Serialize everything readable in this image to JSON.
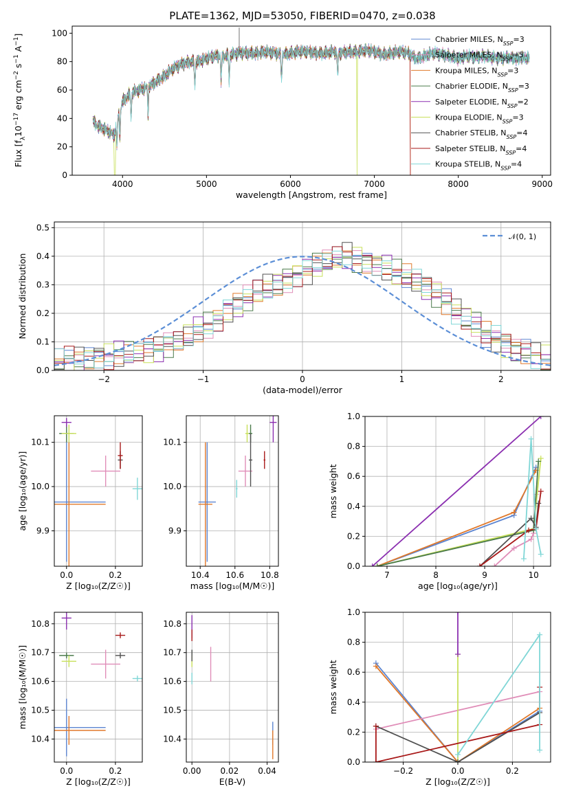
{
  "colors": {
    "chabrier_miles": "#5b84d0",
    "salpeter_miles": "#e08db8",
    "kroupa_miles": "#e0782a",
    "chabrier_elodie": "#4a7a4a",
    "salpeter_elodie": "#8b2fb0",
    "kroupa_elodie": "#c8e05a",
    "chabrier_stelib": "#505050",
    "salpeter_stelib": "#a81818",
    "kroupa_stelib": "#7fd6d6",
    "normal": "#5b8ed6"
  },
  "series_order": [
    "Chabrier MILES",
    "Salpeter MILES",
    "Kroupa MILES",
    "Chabrier ELODIE",
    "Salpeter ELODIE",
    "Kroupa ELODIE",
    "Chabrier STELIB",
    "Salpeter STELIB",
    "Kroupa STELIB"
  ],
  "series_keys": [
    "chabrier_miles",
    "salpeter_miles",
    "kroupa_miles",
    "chabrier_elodie",
    "salpeter_elodie",
    "kroupa_elodie",
    "chabrier_stelib",
    "salpeter_stelib",
    "kroupa_stelib"
  ],
  "chart_data": [
    {
      "id": "spectrum",
      "type": "line",
      "title": "PLATE=1362, MJD=53050, FIBERID=0470, z=0.038",
      "xlabel": "wavelength [Angstrom, rest frame]",
      "xlim": [
        3400,
        9100
      ],
      "ylim": [
        0,
        105
      ],
      "xticks": [
        "4000",
        "5000",
        "6000",
        "7000",
        "8000",
        "9000"
      ],
      "yticks": [
        "0",
        "20",
        "40",
        "60",
        "80",
        "100"
      ],
      "continuum": {
        "x": [
          3650,
          3700,
          3800,
          3900,
          3950,
          4000,
          4100,
          4200,
          4300,
          4400,
          4500,
          4600,
          4700,
          4800,
          4900,
          5000,
          5100,
          5200,
          5300,
          5400,
          5500,
          5600,
          5700,
          5800,
          5900,
          6000,
          6100,
          6200,
          6300,
          6400,
          6500,
          6600,
          6700,
          6800,
          6900,
          7000,
          7100,
          7200,
          7300,
          7400,
          7500,
          7600,
          7700,
          7800,
          7900,
          8000,
          8100,
          8200,
          8300,
          8400,
          8500,
          8600,
          8700,
          8800,
          8850
        ],
        "y": [
          38,
          35,
          32,
          28,
          42,
          52,
          58,
          60,
          62,
          66,
          70,
          75,
          78,
          80,
          80,
          82,
          84,
          84,
          85,
          86,
          86,
          86,
          87,
          86,
          85,
          86,
          87,
          87,
          86,
          86,
          87,
          86,
          87,
          87,
          88,
          87,
          85,
          86,
          87,
          86,
          82,
          84,
          86,
          85,
          84,
          82,
          84,
          83,
          84,
          83,
          82,
          83,
          82,
          83,
          82
        ]
      },
      "legend": [
        {
          "label": "Chabrier MILES",
          "n": "3"
        },
        {
          "label": "Salpeter MILES",
          "n": "5"
        },
        {
          "label": "Kroupa MILES",
          "n": "3"
        },
        {
          "label": "Chabrier ELODIE",
          "n": "3"
        },
        {
          "label": "Salpeter ELODIE",
          "n": "2"
        },
        {
          "label": "Kroupa ELODIE",
          "n": "3"
        },
        {
          "label": "Chabrier STELIB",
          "n": "4"
        },
        {
          "label": "Salpeter STELIB",
          "n": "4"
        },
        {
          "label": "Kroupa STELIB",
          "n": "4"
        }
      ]
    },
    {
      "id": "residuals",
      "type": "histogram",
      "xlabel": "(data-model)/error",
      "ylabel": "Normed distribution",
      "xlim": [
        -2.5,
        2.5
      ],
      "ylim": [
        0,
        0.52
      ],
      "xticks": [
        "−2",
        "−1",
        "0",
        "1",
        "2"
      ],
      "yticks": [
        "0.0",
        "0.1",
        "0.2",
        "0.3",
        "0.4",
        "0.5"
      ],
      "bin_edges_start": -2.5,
      "bin_width": 0.1,
      "hist_values": [
        0.03,
        0.035,
        0.04,
        0.045,
        0.05,
        0.05,
        0.055,
        0.06,
        0.06,
        0.07,
        0.08,
        0.09,
        0.1,
        0.12,
        0.14,
        0.16,
        0.18,
        0.21,
        0.23,
        0.25,
        0.27,
        0.29,
        0.3,
        0.32,
        0.34,
        0.35,
        0.37,
        0.38,
        0.39,
        0.4,
        0.39,
        0.38,
        0.37,
        0.36,
        0.34,
        0.33,
        0.31,
        0.29,
        0.27,
        0.24,
        0.21,
        0.18,
        0.16,
        0.13,
        0.11,
        0.09,
        0.07,
        0.06,
        0.05,
        0.04
      ],
      "normal_label": "𝒩(0, 1)"
    },
    {
      "id": "age_vs_z",
      "type": "errorbar",
      "xlabel": "Z [log₁₀(Z/Z☉)]",
      "ylabel": "age  [log₁₀(age/yr)]",
      "xlim": [
        -0.05,
        0.31
      ],
      "ylim": [
        9.82,
        10.16
      ],
      "xticks": [
        "0.0",
        "0.2"
      ],
      "yticks": [
        "9.9",
        "10.0",
        "10.1"
      ],
      "points": [
        {
          "s": "chabrier_miles",
          "x": 0.0,
          "y": 9.965,
          "xerr": 0.16,
          "yerr": 0.135
        },
        {
          "s": "salpeter_miles",
          "x": 0.16,
          "y": 10.035,
          "xerr": 0.06,
          "yerr": 0.035
        },
        {
          "s": "kroupa_miles",
          "x": 0.01,
          "y": 9.96,
          "xerr": 0.15,
          "yerr": 0.14
        },
        {
          "s": "chabrier_elodie",
          "x": 0.0,
          "y": 10.12,
          "xerr": 0.03,
          "yerr": 0.02
        },
        {
          "s": "salpeter_elodie",
          "x": 0.0,
          "y": 10.145,
          "xerr": 0.02,
          "yerr": 0.01
        },
        {
          "s": "kroupa_elodie",
          "x": 0.01,
          "y": 10.12,
          "xerr": 0.03,
          "yerr": 0.02
        },
        {
          "s": "chabrier_stelib",
          "x": 0.22,
          "y": 10.06,
          "xerr": 0.01,
          "yerr": 0.02
        },
        {
          "s": "salpeter_stelib",
          "x": 0.22,
          "y": 10.07,
          "xerr": 0.01,
          "yerr": 0.03
        },
        {
          "s": "kroupa_stelib",
          "x": 0.29,
          "y": 9.995,
          "xerr": 0.02,
          "yerr": 0.025
        }
      ]
    },
    {
      "id": "age_vs_mass",
      "type": "errorbar",
      "xlabel": "mass [log₁₀(M/M☉)]",
      "ylabel": "",
      "xlim": [
        10.32,
        10.85
      ],
      "ylim": [
        9.82,
        10.16
      ],
      "xticks": [
        "10.4",
        "10.6",
        "10.8"
      ],
      "yticks": [
        "9.9",
        "10.0",
        "10.1"
      ],
      "points": [
        {
          "s": "chabrier_miles",
          "x": 10.44,
          "y": 9.965,
          "xerr": 0.05,
          "yerr": 0.135
        },
        {
          "s": "salpeter_miles",
          "x": 10.66,
          "y": 10.035,
          "xerr": 0.04,
          "yerr": 0.035
        },
        {
          "s": "kroupa_miles",
          "x": 10.43,
          "y": 9.96,
          "xerr": 0.04,
          "yerr": 0.14
        },
        {
          "s": "chabrier_elodie",
          "x": 10.69,
          "y": 10.12,
          "xerr": 0.01,
          "yerr": 0.02
        },
        {
          "s": "salpeter_elodie",
          "x": 10.82,
          "y": 10.145,
          "xerr": 0.02,
          "yerr": 0.045
        },
        {
          "s": "kroupa_elodie",
          "x": 10.67,
          "y": 10.12,
          "xerr": 0.01,
          "yerr": 0.02
        },
        {
          "s": "chabrier_stelib",
          "x": 10.69,
          "y": 10.06,
          "xerr": 0.01,
          "yerr": 0.06
        },
        {
          "s": "salpeter_stelib",
          "x": 10.77,
          "y": 10.06,
          "xerr": 0.005,
          "yerr": 0.02
        },
        {
          "s": "kroupa_stelib",
          "x": 10.61,
          "y": 9.995,
          "xerr": 0.005,
          "yerr": 0.02
        }
      ]
    },
    {
      "id": "weight_vs_age",
      "type": "line",
      "xlabel": "age  [log₁₀(age/yr)]",
      "ylabel": "mass weight",
      "xlim": [
        6.55,
        10.35
      ],
      "ylim": [
        0,
        1.0
      ],
      "xticks": [
        "7",
        "8",
        "9",
        "10"
      ],
      "yticks": [
        "0.0",
        "0.2",
        "0.4",
        "0.6",
        "0.8",
        "1.0"
      ],
      "lines": [
        {
          "s": "chabrier_miles",
          "x": [
            6.8,
            9.6,
            10.05
          ],
          "y": [
            0.0,
            0.34,
            0.66
          ]
        },
        {
          "s": "kroupa_miles",
          "x": [
            6.8,
            9.6,
            10.05
          ],
          "y": [
            0.0,
            0.36,
            0.64
          ]
        },
        {
          "s": "salpeter_miles",
          "x": [
            9.2,
            9.6,
            9.95,
            10.0,
            10.05
          ],
          "y": [
            0.0,
            0.12,
            0.18,
            0.22,
            0.48
          ]
        },
        {
          "s": "kroupa_elodie",
          "x": [
            6.8,
            10.0,
            10.15
          ],
          "y": [
            0.0,
            0.25,
            0.72
          ]
        },
        {
          "s": "chabrier_elodie",
          "x": [
            6.8,
            10.0,
            10.1
          ],
          "y": [
            0.0,
            0.24,
            0.7
          ]
        },
        {
          "s": "salpeter_elodie",
          "x": [
            6.7,
            10.15
          ],
          "y": [
            0.0,
            1.0
          ]
        },
        {
          "s": "chabrier_stelib",
          "x": [
            8.9,
            9.95,
            10.05,
            10.1
          ],
          "y": [
            0.0,
            0.32,
            0.26,
            0.42
          ]
        },
        {
          "s": "salpeter_stelib",
          "x": [
            8.9,
            9.9,
            10.05,
            10.15
          ],
          "y": [
            0.0,
            0.24,
            0.25,
            0.5
          ]
        },
        {
          "s": "kroupa_stelib",
          "x": [
            9.8,
            9.95,
            10.05,
            10.15
          ],
          "y": [
            0.05,
            0.85,
            0.25,
            0.08
          ]
        }
      ]
    },
    {
      "id": "mass_vs_z",
      "type": "errorbar",
      "xlabel": "Z [log₁₀(Z/Z☉)]",
      "ylabel": "mass [log₁₀(M/M☉)]",
      "xlim": [
        -0.05,
        0.31
      ],
      "ylim": [
        10.32,
        10.84
      ],
      "xticks": [
        "0.0",
        "0.2"
      ],
      "yticks": [
        "10.4",
        "10.5",
        "10.6",
        "10.7",
        "10.8"
      ],
      "points": [
        {
          "s": "chabrier_miles",
          "x": 0.0,
          "y": 10.44,
          "xerr": 0.16,
          "yerr": 0.1
        },
        {
          "s": "salpeter_miles",
          "x": 0.16,
          "y": 10.66,
          "xerr": 0.06,
          "yerr": 0.05
        },
        {
          "s": "kroupa_miles",
          "x": 0.01,
          "y": 10.43,
          "xerr": 0.15,
          "yerr": 0.05
        },
        {
          "s": "chabrier_elodie",
          "x": 0.0,
          "y": 10.69,
          "xerr": 0.03,
          "yerr": 0.01
        },
        {
          "s": "salpeter_elodie",
          "x": 0.0,
          "y": 10.82,
          "xerr": 0.02,
          "yerr": 0.04
        },
        {
          "s": "kroupa_elodie",
          "x": 0.01,
          "y": 10.67,
          "xerr": 0.03,
          "yerr": 0.02
        },
        {
          "s": "chabrier_stelib",
          "x": 0.22,
          "y": 10.69,
          "xerr": 0.02,
          "yerr": 0.01
        },
        {
          "s": "salpeter_stelib",
          "x": 0.22,
          "y": 10.76,
          "xerr": 0.02,
          "yerr": 0.01
        },
        {
          "s": "kroupa_stelib",
          "x": 0.29,
          "y": 10.61,
          "xerr": 0.02,
          "yerr": 0.01
        }
      ]
    },
    {
      "id": "mass_vs_ebv",
      "type": "errorbar",
      "xlabel": "E(B-V)",
      "ylabel": "",
      "xlim": [
        -0.003,
        0.046
      ],
      "ylim": [
        10.32,
        10.84
      ],
      "xticks": [
        "0.00",
        "0.02",
        "0.04"
      ],
      "yticks": [
        "10.4",
        "10.5",
        "10.6",
        "10.7",
        "10.8"
      ],
      "points": [
        {
          "s": "chabrier_miles",
          "x": 0.043,
          "y": 10.42,
          "xerr": 0.0,
          "yerr": 0.04
        },
        {
          "s": "salpeter_miles",
          "x": 0.01,
          "y": 10.66,
          "xerr": 0.0,
          "yerr": 0.06
        },
        {
          "s": "kroupa_miles",
          "x": 0.043,
          "y": 10.38,
          "xerr": 0.0,
          "yerr": 0.05
        },
        {
          "s": "chabrier_elodie",
          "x": 0.0,
          "y": 10.69,
          "xerr": 0.0,
          "yerr": 0.02
        },
        {
          "s": "salpeter_elodie",
          "x": 0.0,
          "y": 10.79,
          "xerr": 0.0,
          "yerr": 0.04
        },
        {
          "s": "kroupa_elodie",
          "x": 0.0,
          "y": 10.67,
          "xerr": 0.0,
          "yerr": 0.02
        },
        {
          "s": "chabrier_stelib",
          "x": 0.0,
          "y": 10.69,
          "xerr": 0.0,
          "yerr": 0.02
        },
        {
          "s": "salpeter_stelib",
          "x": 0.0,
          "y": 10.76,
          "xerr": 0.0,
          "yerr": 0.02
        },
        {
          "s": "kroupa_stelib",
          "x": 0.0,
          "y": 10.61,
          "xerr": 0.0,
          "yerr": 0.02
        }
      ]
    },
    {
      "id": "weight_vs_z",
      "type": "line",
      "xlabel": "Z [log₁₀(Z/Z☉)]",
      "ylabel": "mass weight",
      "xlim": [
        -0.34,
        0.34
      ],
      "ylim": [
        0,
        1.0
      ],
      "xticks": [
        "−0.2",
        "0.0",
        "0.2"
      ],
      "yticks": [
        "0.0",
        "0.2",
        "0.4",
        "0.6",
        "0.8",
        "1.0"
      ],
      "lines": [
        {
          "s": "chabrier_miles",
          "x": [
            -0.3,
            0.0,
            0.3
          ],
          "y": [
            0.66,
            0.0,
            0.34
          ]
        },
        {
          "s": "kroupa_miles",
          "x": [
            -0.3,
            0.0,
            0.3
          ],
          "y": [
            0.64,
            0.0,
            0.36
          ]
        },
        {
          "s": "salpeter_miles",
          "x": [
            -0.3,
            0.3
          ],
          "y": [
            0.22,
            0.47
          ]
        },
        {
          "s": "kroupa_elodie",
          "x": [
            0.0,
            0.0
          ],
          "y": [
            0.0,
            0.72
          ]
        },
        {
          "s": "salpeter_elodie",
          "x": [
            0.0,
            0.0
          ],
          "y": [
            0.72,
            1.0
          ]
        },
        {
          "s": "chabrier_stelib",
          "x": [
            -0.3,
            0.0,
            0.3
          ],
          "y": [
            0.24,
            0.0,
            0.33
          ]
        },
        {
          "s": "salpeter_stelib",
          "x": [
            -0.3,
            -0.3,
            0.3,
            0.3
          ],
          "y": [
            0.24,
            0.0,
            0.25,
            0.5
          ]
        },
        {
          "s": "kroupa_stelib",
          "x": [
            0.0,
            0.3,
            0.3
          ],
          "y": [
            0.05,
            0.85,
            0.08
          ]
        }
      ]
    }
  ]
}
